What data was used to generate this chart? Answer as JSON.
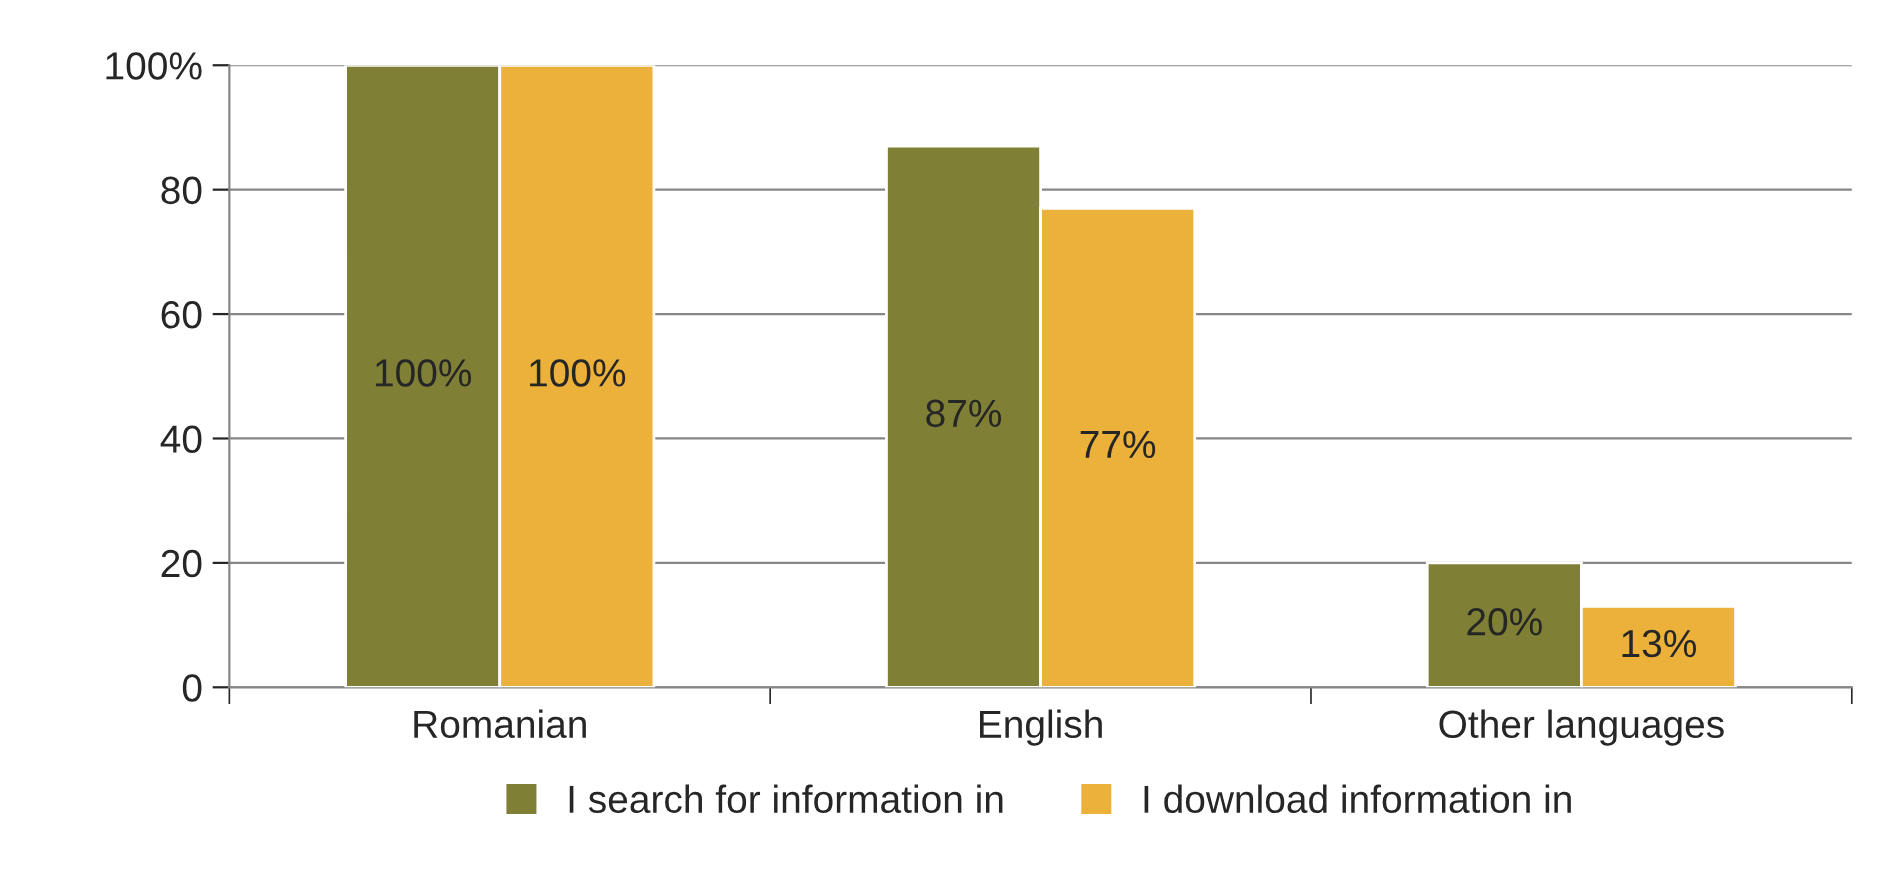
{
  "chart_data": {
    "type": "bar",
    "categories": [
      "Romanian",
      "English",
      "Other languages"
    ],
    "series": [
      {
        "name": "I search for information in",
        "color": "#7f7f35",
        "values": [
          100,
          87,
          20
        ],
        "value_labels": [
          "100%",
          "87%",
          "20%"
        ]
      },
      {
        "name": "I download information in",
        "color": "#ebb13b",
        "values": [
          100,
          77,
          13
        ],
        "value_labels": [
          "100%",
          "77%",
          "13%"
        ]
      }
    ],
    "ylim": [
      0,
      100
    ],
    "yticks": [
      0,
      20,
      40,
      60,
      80,
      {
        "value": 100,
        "label": "100%"
      }
    ],
    "grid": "y",
    "legend": "bottom"
  }
}
